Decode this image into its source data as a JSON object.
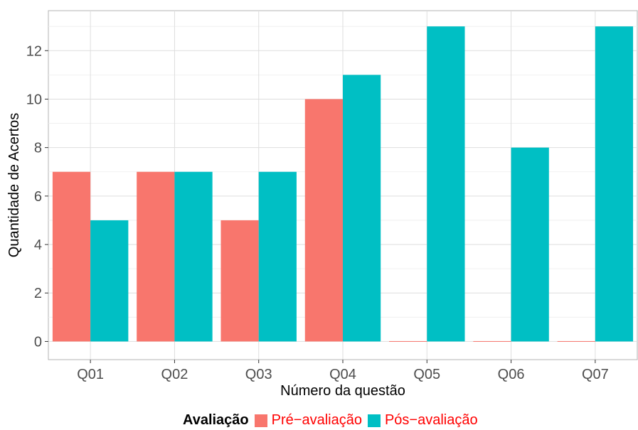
{
  "chart_data": {
    "type": "bar",
    "categories": [
      "Q01",
      "Q02",
      "Q03",
      "Q04",
      "Q05",
      "Q06",
      "Q07"
    ],
    "series": [
      {
        "name": "Pré−avaliação",
        "color": "#F8766D",
        "values": [
          7,
          7,
          5,
          10,
          0,
          0,
          0
        ]
      },
      {
        "name": "Pós−avaliação",
        "color": "#00BFC4",
        "values": [
          5,
          7,
          7,
          11,
          13,
          8,
          13
        ]
      }
    ],
    "xlabel": "Número da questão",
    "ylabel": "Quantidade de Acertos",
    "ylim": [
      -0.75,
      13.65
    ],
    "yticks": [
      0,
      2,
      4,
      6,
      8,
      10,
      12
    ],
    "grid": true,
    "legend": {
      "title": "Avaliação",
      "placement": "bottom"
    }
  }
}
